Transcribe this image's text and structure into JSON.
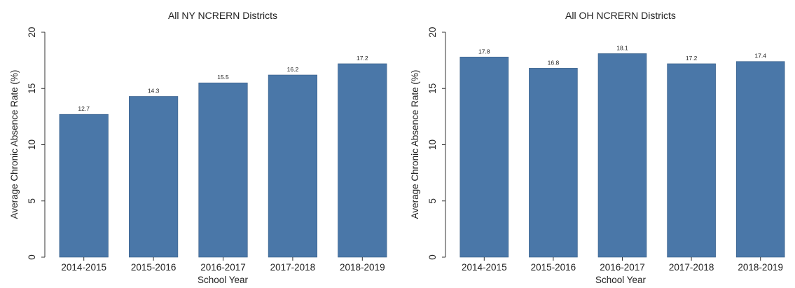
{
  "chart_data": [
    {
      "type": "bar",
      "title": "All NY NCRERN Districts",
      "xlabel": "School Year",
      "ylabel": "Average Chronic Absence Rate (%)",
      "categories": [
        "2014-2015",
        "2015-2016",
        "2016-2017",
        "2017-2018",
        "2018-2019"
      ],
      "values": [
        12.7,
        14.3,
        15.5,
        16.2,
        17.2
      ],
      "data_labels": [
        "12.7",
        "14.3",
        "15.5",
        "16.2",
        "17.2"
      ],
      "ylim": [
        0,
        20
      ],
      "yticks": [
        0,
        5,
        10,
        15,
        20
      ],
      "ytick_labels": [
        "0",
        "5",
        "10",
        "15",
        "20"
      ],
      "grid": false,
      "bar_color": "#4a77a8"
    },
    {
      "type": "bar",
      "title": "All OH NCRERN Districts",
      "xlabel": "School Year",
      "ylabel": "Average Chronic Absence Rate (%)",
      "categories": [
        "2014-2015",
        "2015-2016",
        "2016-2017",
        "2017-2018",
        "2018-2019"
      ],
      "values": [
        17.8,
        16.8,
        18.1,
        17.2,
        17.4
      ],
      "data_labels": [
        "17.8",
        "16.8",
        "18.1",
        "17.2",
        "17.4"
      ],
      "ylim": [
        0,
        20
      ],
      "yticks": [
        0,
        5,
        10,
        15,
        20
      ],
      "ytick_labels": [
        "0",
        "5",
        "10",
        "15",
        "20"
      ],
      "grid": false,
      "bar_color": "#4a77a8"
    }
  ]
}
